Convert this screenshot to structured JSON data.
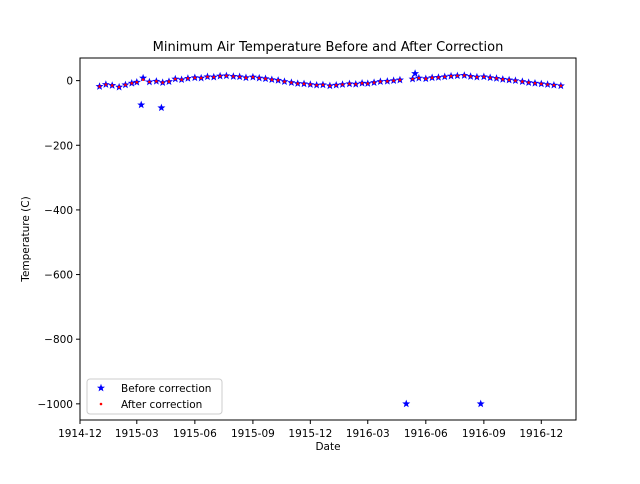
{
  "chart_data": {
    "type": "scatter",
    "title": "Minimum Air Temperature Before and After Correction",
    "xlabel": "Date",
    "ylabel": "Temperature (C)",
    "x_ticks": [
      "1914-12",
      "1915-03",
      "1915-06",
      "1915-09",
      "1915-12",
      "1916-03",
      "1916-06",
      "1916-09",
      "1916-12"
    ],
    "y_ticks": [
      0,
      -200,
      -400,
      -600,
      -800,
      -1000
    ],
    "y_tick_labels": [
      "0",
      "−200",
      "−400",
      "−600",
      "−800",
      "−1000"
    ],
    "xlim": [
      "1914-12-01",
      "1917-01-25"
    ],
    "ylim": [
      -1050,
      70
    ],
    "grid": false,
    "legend_position": "lower-left",
    "colors": {
      "before": "#0000ff",
      "after": "#ff0000"
    },
    "series": [
      {
        "name": "Before correction",
        "marker": "star",
        "color": "#0000ff",
        "points": [
          [
            "1915-01-01",
            -18
          ],
          [
            "1915-01-11",
            -12
          ],
          [
            "1915-01-21",
            -15
          ],
          [
            "1915-02-01",
            -20
          ],
          [
            "1915-02-11",
            -13
          ],
          [
            "1915-02-21",
            -8
          ],
          [
            "1915-03-01",
            -5
          ],
          [
            "1915-03-08",
            -75
          ],
          [
            "1915-03-11",
            8
          ],
          [
            "1915-03-21",
            -4
          ],
          [
            "1915-04-01",
            -2
          ],
          [
            "1915-04-09",
            -84
          ],
          [
            "1915-04-11",
            -6
          ],
          [
            "1915-04-21",
            -3
          ],
          [
            "1915-05-01",
            5
          ],
          [
            "1915-05-11",
            3
          ],
          [
            "1915-05-21",
            7
          ],
          [
            "1915-06-01",
            9
          ],
          [
            "1915-06-11",
            8
          ],
          [
            "1915-06-21",
            12
          ],
          [
            "1915-07-01",
            11
          ],
          [
            "1915-07-11",
            14
          ],
          [
            "1915-07-21",
            15
          ],
          [
            "1915-08-01",
            13
          ],
          [
            "1915-08-11",
            12
          ],
          [
            "1915-08-21",
            9
          ],
          [
            "1915-09-01",
            11
          ],
          [
            "1915-09-11",
            8
          ],
          [
            "1915-09-21",
            6
          ],
          [
            "1915-10-01",
            3
          ],
          [
            "1915-10-11",
            1
          ],
          [
            "1915-10-21",
            -3
          ],
          [
            "1915-11-01",
            -6
          ],
          [
            "1915-11-11",
            -9
          ],
          [
            "1915-11-21",
            -10
          ],
          [
            "1915-12-01",
            -12
          ],
          [
            "1915-12-11",
            -14
          ],
          [
            "1915-12-21",
            -13
          ],
          [
            "1916-01-01",
            -16
          ],
          [
            "1916-01-11",
            -14
          ],
          [
            "1916-01-21",
            -12
          ],
          [
            "1916-02-01",
            -10
          ],
          [
            "1916-02-11",
            -11
          ],
          [
            "1916-02-21",
            -8
          ],
          [
            "1916-03-01",
            -9
          ],
          [
            "1916-03-11",
            -6
          ],
          [
            "1916-03-21",
            -3
          ],
          [
            "1916-04-01",
            -2
          ],
          [
            "1916-04-11",
            0
          ],
          [
            "1916-04-21",
            2
          ],
          [
            "1916-05-01",
            -1000
          ],
          [
            "1916-05-11",
            5
          ],
          [
            "1916-05-15",
            22
          ],
          [
            "1916-05-21",
            8
          ],
          [
            "1916-06-01",
            6
          ],
          [
            "1916-06-11",
            9
          ],
          [
            "1916-06-21",
            10
          ],
          [
            "1916-07-01",
            12
          ],
          [
            "1916-07-11",
            14
          ],
          [
            "1916-07-21",
            15
          ],
          [
            "1916-08-01",
            16
          ],
          [
            "1916-08-11",
            13
          ],
          [
            "1916-08-21",
            11
          ],
          [
            "1916-08-27",
            -1000
          ],
          [
            "1916-09-01",
            12
          ],
          [
            "1916-09-11",
            9
          ],
          [
            "1916-09-21",
            7
          ],
          [
            "1916-10-01",
            4
          ],
          [
            "1916-10-11",
            2
          ],
          [
            "1916-10-21",
            0
          ],
          [
            "1916-11-01",
            -3
          ],
          [
            "1916-11-11",
            -6
          ],
          [
            "1916-11-21",
            -8
          ],
          [
            "1916-12-01",
            -10
          ],
          [
            "1916-12-11",
            -12
          ],
          [
            "1916-12-21",
            -14
          ],
          [
            "1917-01-01",
            -16
          ]
        ]
      },
      {
        "name": "After correction",
        "marker": "point",
        "color": "#ff0000",
        "points": [
          [
            "1915-01-01",
            -18
          ],
          [
            "1915-01-11",
            -12
          ],
          [
            "1915-01-21",
            -15
          ],
          [
            "1915-02-01",
            -20
          ],
          [
            "1915-02-11",
            -13
          ],
          [
            "1915-02-21",
            -8
          ],
          [
            "1915-03-01",
            -5
          ],
          [
            "1915-03-11",
            3
          ],
          [
            "1915-03-21",
            -4
          ],
          [
            "1915-04-01",
            -2
          ],
          [
            "1915-04-11",
            -6
          ],
          [
            "1915-04-21",
            -3
          ],
          [
            "1915-05-01",
            5
          ],
          [
            "1915-05-11",
            3
          ],
          [
            "1915-05-21",
            7
          ],
          [
            "1915-06-01",
            9
          ],
          [
            "1915-06-11",
            8
          ],
          [
            "1915-06-21",
            12
          ],
          [
            "1915-07-01",
            11
          ],
          [
            "1915-07-11",
            14
          ],
          [
            "1915-07-21",
            15
          ],
          [
            "1915-08-01",
            13
          ],
          [
            "1915-08-11",
            12
          ],
          [
            "1915-08-21",
            9
          ],
          [
            "1915-09-01",
            11
          ],
          [
            "1915-09-11",
            8
          ],
          [
            "1915-09-21",
            6
          ],
          [
            "1915-10-01",
            3
          ],
          [
            "1915-10-11",
            1
          ],
          [
            "1915-10-21",
            -3
          ],
          [
            "1915-11-01",
            -6
          ],
          [
            "1915-11-11",
            -9
          ],
          [
            "1915-11-21",
            -10
          ],
          [
            "1915-12-01",
            -12
          ],
          [
            "1915-12-11",
            -14
          ],
          [
            "1915-12-21",
            -13
          ],
          [
            "1916-01-01",
            -16
          ],
          [
            "1916-01-11",
            -14
          ],
          [
            "1916-01-21",
            -12
          ],
          [
            "1916-02-01",
            -10
          ],
          [
            "1916-02-11",
            -11
          ],
          [
            "1916-02-21",
            -8
          ],
          [
            "1916-03-01",
            -9
          ],
          [
            "1916-03-11",
            -6
          ],
          [
            "1916-03-21",
            -3
          ],
          [
            "1916-04-01",
            -2
          ],
          [
            "1916-04-11",
            0
          ],
          [
            "1916-04-21",
            2
          ],
          [
            "1916-05-11",
            5
          ],
          [
            "1916-05-21",
            8
          ],
          [
            "1916-06-01",
            6
          ],
          [
            "1916-06-11",
            9
          ],
          [
            "1916-06-21",
            10
          ],
          [
            "1916-07-01",
            12
          ],
          [
            "1916-07-11",
            14
          ],
          [
            "1916-07-21",
            15
          ],
          [
            "1916-08-01",
            16
          ],
          [
            "1916-08-11",
            13
          ],
          [
            "1916-08-21",
            11
          ],
          [
            "1916-09-01",
            12
          ],
          [
            "1916-09-11",
            9
          ],
          [
            "1916-09-21",
            7
          ],
          [
            "1916-10-01",
            4
          ],
          [
            "1916-10-11",
            2
          ],
          [
            "1916-10-21",
            0
          ],
          [
            "1916-11-01",
            -3
          ],
          [
            "1916-11-11",
            -6
          ],
          [
            "1916-11-21",
            -8
          ],
          [
            "1916-12-01",
            -10
          ],
          [
            "1916-12-11",
            -12
          ],
          [
            "1916-12-21",
            -14
          ],
          [
            "1917-01-01",
            -16
          ]
        ]
      }
    ]
  }
}
